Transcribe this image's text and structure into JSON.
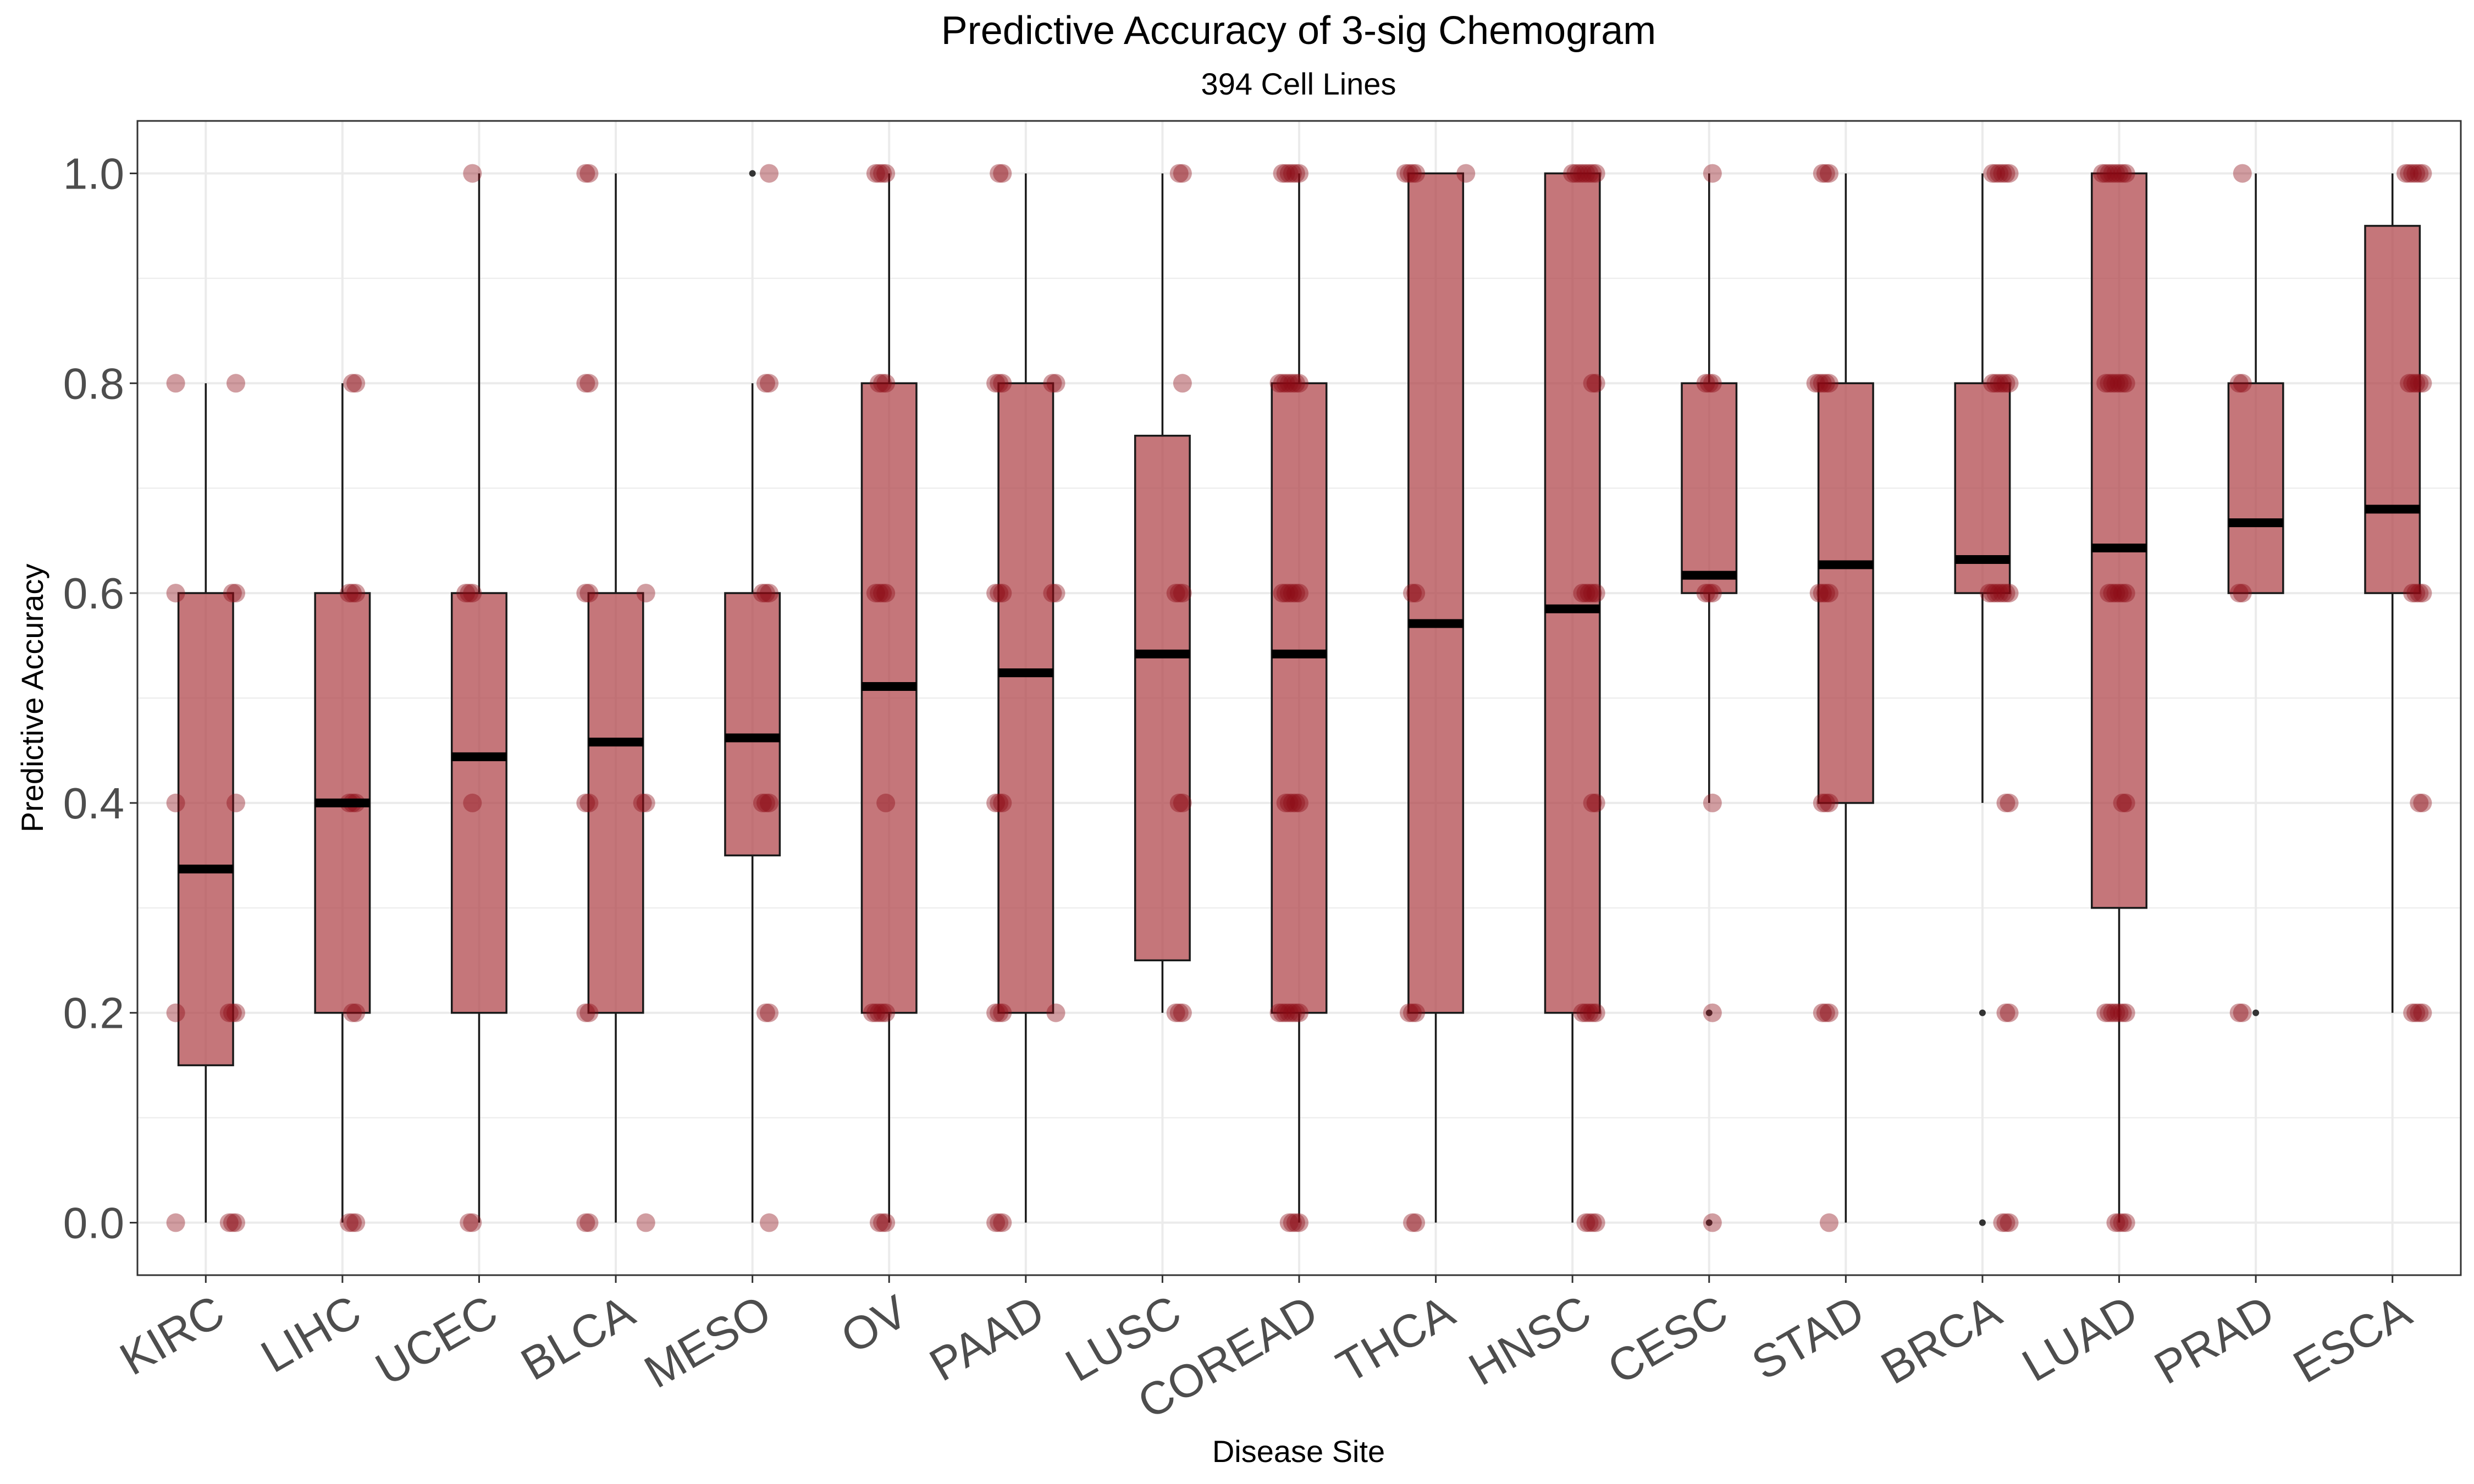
{
  "chart_data": {
    "type": "box",
    "title": "Predictive Accuracy of 3-sig Chemogram",
    "subtitle": "394 Cell Lines",
    "xlabel": "Disease Site",
    "ylabel": "Predictive Accuracy",
    "ylim": [
      -0.05,
      1.05
    ],
    "yticks": [
      "0.0",
      "0.2",
      "0.4",
      "0.6",
      "0.8",
      "1.0"
    ],
    "grid": true,
    "categories": [
      "KIRC",
      "LIHC",
      "UCEC",
      "BLCA",
      "MESO",
      "OV",
      "PAAD",
      "LUSC",
      "COREAD",
      "THCA",
      "HNSC",
      "CESC",
      "STAD",
      "BRCA",
      "LUAD",
      "PRAD",
      "ESCA"
    ],
    "boxes": [
      {
        "category": "KIRC",
        "whisker_low": 0.0,
        "q1": 0.15,
        "median": 0.337,
        "q3": 0.6,
        "whisker_high": 0.8,
        "outliers": []
      },
      {
        "category": "LIHC",
        "whisker_low": 0.0,
        "q1": 0.2,
        "median": 0.4,
        "q3": 0.6,
        "whisker_high": 0.8,
        "outliers": []
      },
      {
        "category": "UCEC",
        "whisker_low": 0.0,
        "q1": 0.2,
        "median": 0.444,
        "q3": 0.6,
        "whisker_high": 1.0,
        "outliers": []
      },
      {
        "category": "BLCA",
        "whisker_low": 0.0,
        "q1": 0.2,
        "median": 0.458,
        "q3": 0.6,
        "whisker_high": 1.0,
        "outliers": []
      },
      {
        "category": "MESO",
        "whisker_low": 0.0,
        "q1": 0.35,
        "median": 0.462,
        "q3": 0.6,
        "whisker_high": 0.8,
        "outliers": [
          1.0
        ]
      },
      {
        "category": "OV",
        "whisker_low": 0.0,
        "q1": 0.2,
        "median": 0.511,
        "q3": 0.8,
        "whisker_high": 1.0,
        "outliers": []
      },
      {
        "category": "PAAD",
        "whisker_low": 0.0,
        "q1": 0.2,
        "median": 0.524,
        "q3": 0.8,
        "whisker_high": 1.0,
        "outliers": []
      },
      {
        "category": "LUSC",
        "whisker_low": 0.2,
        "q1": 0.25,
        "median": 0.542,
        "q3": 0.75,
        "whisker_high": 1.0,
        "outliers": []
      },
      {
        "category": "COREAD",
        "whisker_low": 0.0,
        "q1": 0.2,
        "median": 0.542,
        "q3": 0.8,
        "whisker_high": 1.0,
        "outliers": []
      },
      {
        "category": "THCA",
        "whisker_low": 0.0,
        "q1": 0.2,
        "median": 0.571,
        "q3": 1.0,
        "whisker_high": 1.0,
        "outliers": []
      },
      {
        "category": "HNSC",
        "whisker_low": 0.0,
        "q1": 0.2,
        "median": 0.585,
        "q3": 1.0,
        "whisker_high": 1.0,
        "outliers": []
      },
      {
        "category": "CESC",
        "whisker_low": 0.4,
        "q1": 0.6,
        "median": 0.617,
        "q3": 0.8,
        "whisker_high": 1.0,
        "outliers": [
          0.2,
          0.0
        ]
      },
      {
        "category": "STAD",
        "whisker_low": 0.0,
        "q1": 0.4,
        "median": 0.627,
        "q3": 0.8,
        "whisker_high": 1.0,
        "outliers": []
      },
      {
        "category": "BRCA",
        "whisker_low": 0.4,
        "q1": 0.6,
        "median": 0.632,
        "q3": 0.8,
        "whisker_high": 1.0,
        "outliers": [
          0.2,
          0.0
        ]
      },
      {
        "category": "LUAD",
        "whisker_low": 0.0,
        "q1": 0.3,
        "median": 0.643,
        "q3": 1.0,
        "whisker_high": 1.0,
        "outliers": []
      },
      {
        "category": "PRAD",
        "whisker_low": 0.6,
        "q1": 0.6,
        "median": 0.667,
        "q3": 0.8,
        "whisker_high": 1.0,
        "outliers": [
          0.2
        ]
      },
      {
        "category": "ESCA",
        "whisker_low": 0.2,
        "q1": 0.6,
        "median": 0.68,
        "q3": 0.95,
        "whisker_high": 1.0,
        "outliers": []
      }
    ],
    "points": {
      "KIRC": [
        0.8,
        0.8,
        0.6,
        0.6,
        0.6,
        0.4,
        0.4,
        0.2,
        0.2,
        0.2,
        0.2,
        0.0,
        0.0,
        0.0,
        0.0
      ],
      "LIHC": [
        0.8,
        0.8,
        0.6,
        0.6,
        0.6,
        0.4,
        0.4,
        0.4,
        0.2,
        0.2,
        0.0,
        0.0,
        0.0
      ],
      "UCEC": [
        1.0,
        0.6,
        0.6,
        0.6,
        0.4,
        0.0,
        0.0
      ],
      "BLCA": [
        1.0,
        1.0,
        0.8,
        0.8,
        0.6,
        0.6,
        0.6,
        0.4,
        0.4,
        0.4,
        0.4,
        0.2,
        0.2,
        0.0,
        0.0,
        0.0
      ],
      "MESO": [
        1.0,
        0.8,
        0.8,
        0.6,
        0.6,
        0.6,
        0.4,
        0.4,
        0.4,
        0.2,
        0.2,
        0.0
      ],
      "OV": [
        1.0,
        1.0,
        1.0,
        1.0,
        0.8,
        0.8,
        0.8,
        0.6,
        0.6,
        0.6,
        0.6,
        0.4,
        0.2,
        0.2,
        0.2,
        0.2,
        0.2,
        0.0,
        0.0,
        0.0
      ],
      "PAAD": [
        1.0,
        1.0,
        0.8,
        0.8,
        0.8,
        0.8,
        0.8,
        0.6,
        0.6,
        0.6,
        0.6,
        0.6,
        0.4,
        0.4,
        0.4,
        0.2,
        0.2,
        0.2,
        0.2,
        0.0,
        0.0,
        0.0
      ],
      "LUSC": [
        1.0,
        1.0,
        0.8,
        0.6,
        0.6,
        0.6,
        0.4,
        0.4,
        0.2,
        0.2,
        0.2
      ],
      "COREAD": [
        1.0,
        1.0,
        1.0,
        1.0,
        1.0,
        1.0,
        0.8,
        0.8,
        0.8,
        0.8,
        0.8,
        0.8,
        0.8,
        0.6,
        0.6,
        0.6,
        0.6,
        0.6,
        0.6,
        0.4,
        0.4,
        0.4,
        0.4,
        0.4,
        0.2,
        0.2,
        0.2,
        0.2,
        0.2,
        0.2,
        0.2,
        0.0,
        0.0,
        0.0,
        0.0
      ],
      "THCA": [
        1.0,
        1.0,
        1.0,
        1.0,
        1.0,
        0.6,
        0.6,
        0.2,
        0.2,
        0.2,
        0.0,
        0.0
      ],
      "HNSC": [
        1.0,
        1.0,
        1.0,
        1.0,
        1.0,
        1.0,
        1.0,
        1.0,
        0.8,
        0.8,
        0.6,
        0.6,
        0.6,
        0.6,
        0.6,
        0.4,
        0.4,
        0.2,
        0.2,
        0.2,
        0.2,
        0.2,
        0.0,
        0.0,
        0.0,
        0.0
      ],
      "CESC": [
        1.0,
        0.8,
        0.8,
        0.8,
        0.6,
        0.6,
        0.6,
        0.4,
        0.2,
        0.0
      ],
      "STAD": [
        1.0,
        1.0,
        1.0,
        0.8,
        0.8,
        0.8,
        0.8,
        0.8,
        0.6,
        0.6,
        0.6,
        0.6,
        0.4,
        0.4,
        0.4,
        0.2,
        0.2,
        0.2,
        0.0
      ],
      "BRCA": [
        1.0,
        1.0,
        1.0,
        1.0,
        1.0,
        1.0,
        0.8,
        0.8,
        0.8,
        0.8,
        0.8,
        0.8,
        0.6,
        0.6,
        0.6,
        0.6,
        0.6,
        0.6,
        0.6,
        0.4,
        0.4,
        0.2,
        0.2,
        0.0,
        0.0,
        0.0
      ],
      "LUAD": [
        1.0,
        1.0,
        1.0,
        1.0,
        1.0,
        1.0,
        1.0,
        1.0,
        0.8,
        0.8,
        0.8,
        0.8,
        0.8,
        0.8,
        0.8,
        0.6,
        0.6,
        0.6,
        0.6,
        0.6,
        0.6,
        0.4,
        0.4,
        0.2,
        0.2,
        0.2,
        0.2,
        0.2,
        0.2,
        0.2,
        0.0,
        0.0,
        0.0,
        0.0
      ],
      "PRAD": [
        1.0,
        0.8,
        0.8,
        0.6,
        0.6,
        0.2,
        0.2
      ],
      "ESCA": [
        1.0,
        1.0,
        1.0,
        1.0,
        1.0,
        1.0,
        0.8,
        0.8,
        0.8,
        0.8,
        0.8,
        0.6,
        0.6,
        0.6,
        0.6,
        0.4,
        0.4,
        0.2,
        0.2,
        0.2,
        0.2
      ]
    },
    "colors": {
      "box_fill": "#b2484e",
      "box_stroke": "#1a1a1a",
      "point": "#8b0a14",
      "median": "#000000",
      "grid": "#ebebeb",
      "panel_border": "#333333"
    }
  }
}
